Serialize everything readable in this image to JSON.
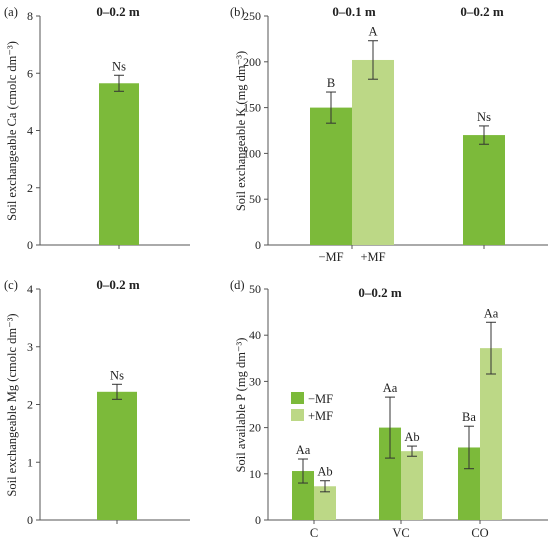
{
  "colors": {
    "minus_mf": "#7cba3a",
    "plus_mf": "#bcd886",
    "axis": "#555555",
    "error": "#333333"
  },
  "chart_data": [
    {
      "id": "a",
      "panel_label": "(a)",
      "type": "bar",
      "title": "0–0.2 m",
      "ylabel": "Soil exchangeable Ca (cmolc dm⁻³)",
      "ylim": [
        0,
        8
      ],
      "yticks": [
        0,
        2,
        4,
        6,
        8
      ],
      "categories": [
        ""
      ],
      "series": [
        {
          "key": "minus_mf",
          "values": [
            5.65
          ],
          "errors": [
            0.28
          ],
          "labels": [
            "Ns"
          ]
        }
      ]
    },
    {
      "id": "b",
      "panel_label": "(b)",
      "type": "bar",
      "ylabel": "Soil exchangeable K (mg dm⁻³)",
      "ylim": [
        0,
        250
      ],
      "yticks": [
        0,
        50,
        100,
        150,
        200,
        250
      ],
      "group_titles": [
        "0–0.1 m",
        "0–0.2 m"
      ],
      "bars": [
        {
          "group": 0,
          "key": "minus_mf",
          "value": 150,
          "error": 17,
          "label": "B",
          "tick_label": "−MF"
        },
        {
          "group": 0,
          "key": "plus_mf",
          "value": 202,
          "error": 21,
          "label": "A",
          "tick_label": "+MF"
        },
        {
          "group": 1,
          "key": "minus_mf",
          "value": 120,
          "error": 10,
          "label": "Ns",
          "tick_label": ""
        }
      ]
    },
    {
      "id": "c",
      "panel_label": "(c)",
      "type": "bar",
      "title": "0–0.2 m",
      "ylabel": "Soil exchangeable Mg (cmolc dm⁻³)",
      "ylim": [
        0,
        4
      ],
      "yticks": [
        0,
        1,
        2,
        3,
        4
      ],
      "categories": [
        ""
      ],
      "series": [
        {
          "key": "minus_mf",
          "values": [
            2.22
          ],
          "errors": [
            0.13
          ],
          "labels": [
            "Ns"
          ]
        }
      ]
    },
    {
      "id": "d",
      "panel_label": "(d)",
      "type": "bar",
      "title": "0–0.2 m",
      "ylabel": "Soil available P (mg dm⁻³)",
      "ylim": [
        0,
        50
      ],
      "yticks": [
        0,
        10,
        20,
        30,
        40,
        50
      ],
      "categories": [
        "C",
        "VC",
        "CO"
      ],
      "legend": {
        "placement": "left",
        "entries": [
          "−MF",
          "+MF"
        ]
      },
      "series": [
        {
          "name": "−MF",
          "key": "minus_mf",
          "values": [
            10.6,
            20.0,
            15.7
          ],
          "errors": [
            2.6,
            6.6,
            4.6
          ],
          "labels": [
            "Aa",
            "Aa",
            "Ba"
          ]
        },
        {
          "name": "+MF",
          "key": "plus_mf",
          "values": [
            7.3,
            14.9,
            37.2
          ],
          "errors": [
            1.2,
            1.1,
            5.6
          ],
          "labels": [
            "Ab",
            "Ab",
            "Aa"
          ]
        }
      ]
    }
  ]
}
